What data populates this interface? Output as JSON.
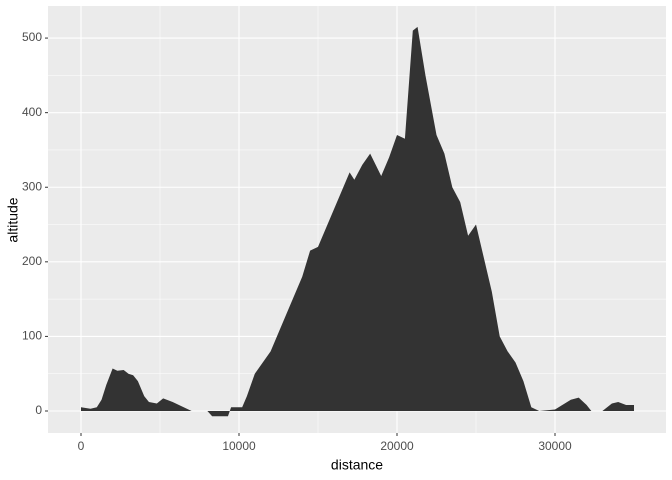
{
  "chart_data": {
    "type": "area",
    "x_label": "distance",
    "y_label": "altitude",
    "x": [
      0,
      300,
      600,
      1000,
      1300,
      1600,
      2000,
      2300,
      2700,
      3000,
      3300,
      3600,
      4000,
      4300,
      4800,
      5200,
      5800,
      6500,
      7000,
      8000,
      8300,
      9300,
      9500,
      10200,
      10500,
      11000,
      12000,
      13000,
      14000,
      14500,
      15000,
      15500,
      16000,
      17000,
      17300,
      17800,
      18300,
      19000,
      19500,
      20000,
      20500,
      21000,
      21300,
      21800,
      22500,
      23000,
      23500,
      24000,
      24500,
      25000,
      26000,
      26500,
      27000,
      27500,
      28000,
      28500,
      29000,
      30000,
      31000,
      31500,
      32000,
      32300,
      33000,
      33600,
      34000,
      34500,
      35000
    ],
    "values": [
      5,
      4,
      3,
      5,
      15,
      35,
      57,
      54,
      55,
      50,
      48,
      40,
      20,
      12,
      10,
      17,
      12,
      5,
      0,
      0,
      -7,
      -7,
      5,
      5,
      20,
      50,
      80,
      130,
      180,
      215,
      220,
      245,
      270,
      320,
      310,
      330,
      345,
      315,
      340,
      370,
      365,
      510,
      515,
      450,
      370,
      345,
      300,
      280,
      235,
      250,
      160,
      100,
      80,
      65,
      40,
      5,
      0,
      2,
      15,
      18,
      8,
      0,
      0,
      10,
      12,
      8,
      8
    ],
    "color": "#333333",
    "xlim": [
      -2089,
      37025
    ],
    "xticks": [
      0,
      10000,
      20000,
      30000
    ],
    "ylim": [
      -29.5,
      543
    ],
    "yticks": [
      0,
      100,
      200,
      300,
      400,
      500
    ],
    "grid": true
  }
}
